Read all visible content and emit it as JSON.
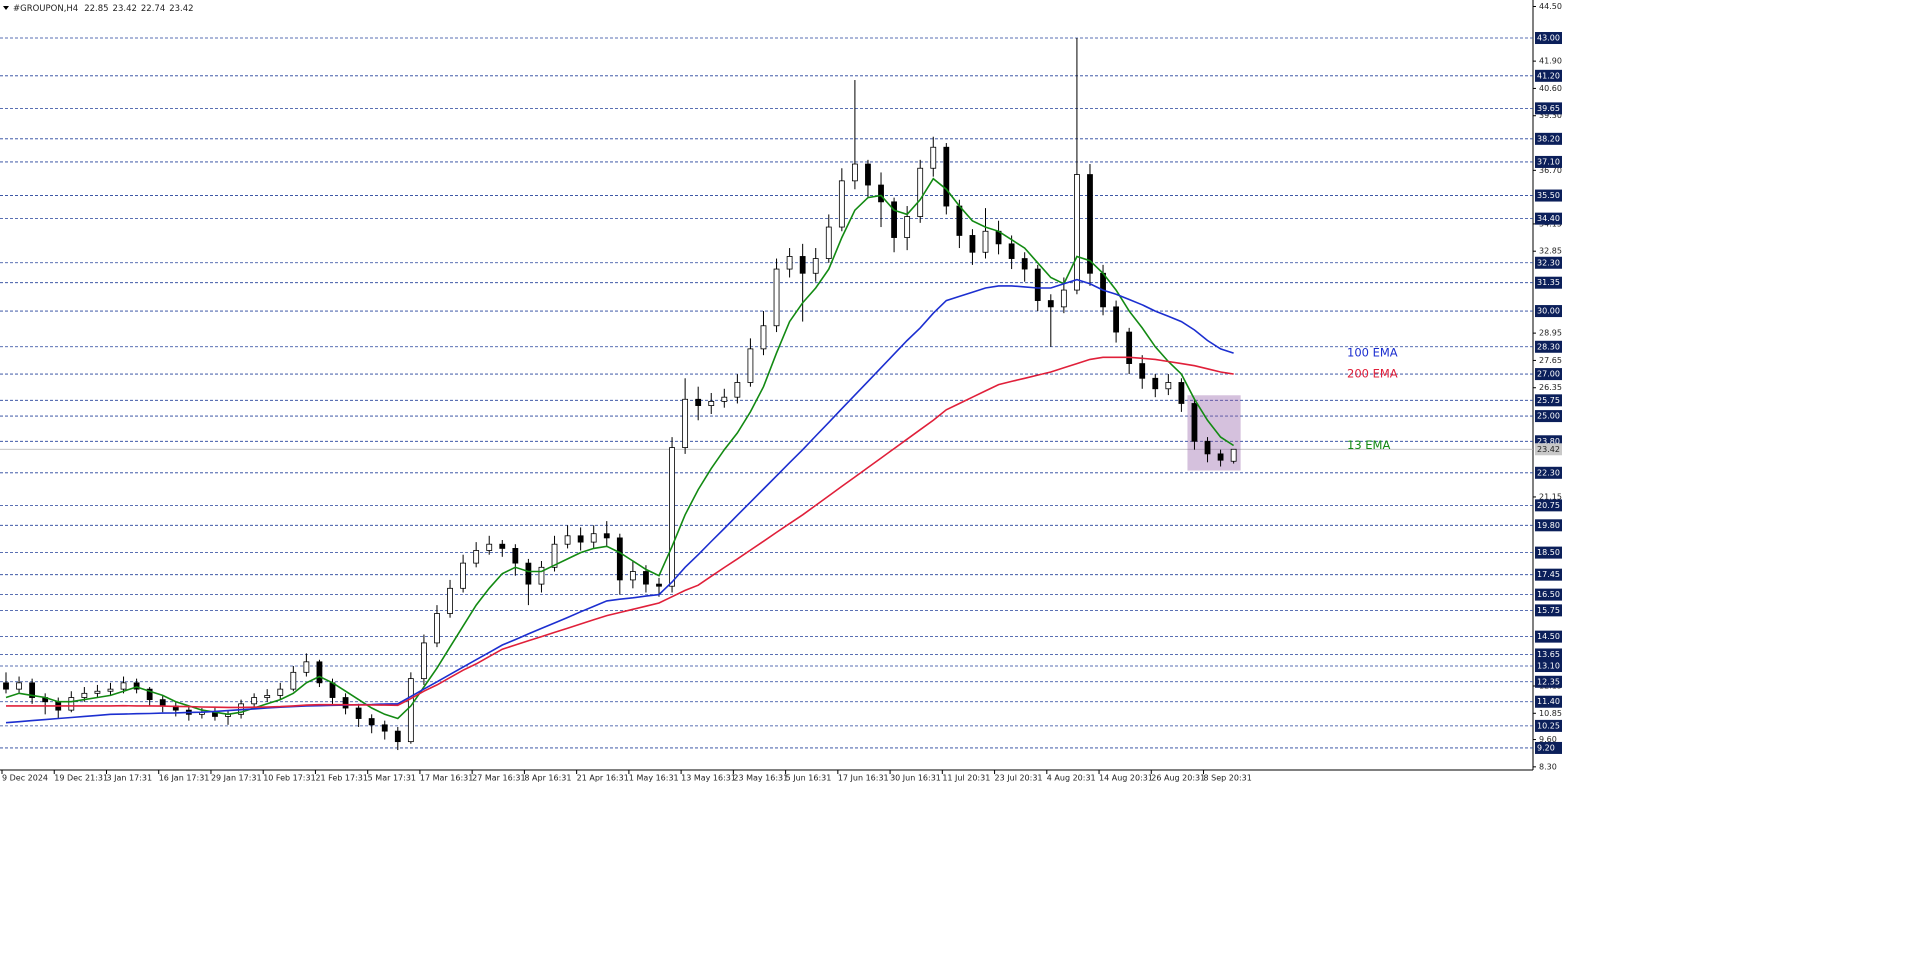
{
  "chart_data": {
    "type": "candlestick",
    "title": "#GROUPON,H4",
    "categories": [
      "9 Dec 2024",
      null,
      null,
      null,
      "19 Dec 21:31",
      null,
      null,
      null,
      "3 Jan 17:31",
      null,
      null,
      null,
      "16 Jan 17:31",
      null,
      null,
      null,
      "29 Jan 17:31",
      null,
      null,
      null,
      "10 Feb 17:31",
      null,
      null,
      null,
      "21 Feb 17:31",
      null,
      null,
      null,
      "5 Mar 17:31",
      null,
      null,
      null,
      "17 Mar 16:31",
      null,
      null,
      null,
      "27 Mar 16:31",
      null,
      null,
      null,
      "8 Apr 16:31",
      null,
      null,
      null,
      "21 Apr 16:31",
      null,
      null,
      null,
      "1 May 16:31",
      null,
      null,
      null,
      "13 May 16:31",
      null,
      null,
      null,
      "23 May 16:31",
      null,
      null,
      null,
      "5 Jun 16:31",
      null,
      null,
      null,
      "17 Jun 16:31",
      null,
      null,
      null,
      "30 Jun 16:31",
      null,
      null,
      null,
      "11 Jul 20:31",
      null,
      null,
      null,
      "23 Jul 20:31",
      null,
      null,
      null,
      "4 Aug 20:31",
      null,
      null,
      null,
      "14 Aug 20:31",
      null,
      null,
      null,
      "26 Aug 20:31",
      null,
      null,
      null,
      "8 Sep 20:31",
      null,
      null
    ],
    "candles": {
      "open": [
        12.3,
        12.0,
        12.3,
        11.6,
        11.4,
        11.0,
        11.6,
        11.8,
        11.9,
        12.0,
        12.3,
        12.0,
        11.5,
        11.2,
        11.0,
        10.8,
        10.9,
        10.7,
        10.8,
        11.3,
        11.6,
        11.7,
        12.0,
        12.8,
        13.3,
        12.3,
        11.6,
        11.1,
        10.6,
        10.3,
        10.0,
        9.5,
        12.5,
        14.2,
        15.6,
        16.8,
        18.0,
        18.6,
        18.9,
        18.7,
        18.0,
        17.0,
        17.8,
        18.9,
        19.3,
        19.0,
        19.4,
        19.2,
        17.2,
        17.6,
        17.0,
        16.9,
        23.5,
        25.8,
        25.5,
        25.7,
        25.9,
        26.6,
        28.2,
        29.3,
        32.0,
        32.6,
        31.8,
        32.5,
        34.0,
        36.2,
        37.0,
        36.0,
        35.2,
        33.5,
        34.5,
        36.8,
        37.8,
        35.0,
        33.6,
        32.8,
        33.8,
        33.2,
        32.5,
        32.0,
        30.5,
        30.2,
        31.0,
        36.5,
        31.8,
        30.2,
        29.0,
        27.5,
        26.8,
        26.3,
        26.6,
        25.6,
        23.8,
        23.2,
        22.85
      ],
      "high": [
        12.8,
        12.6,
        12.5,
        11.8,
        11.6,
        11.9,
        12.1,
        12.2,
        12.3,
        12.6,
        12.5,
        12.1,
        11.7,
        11.4,
        11.2,
        11.1,
        11.1,
        11.0,
        11.5,
        11.8,
        12.0,
        12.3,
        13.1,
        13.7,
        13.4,
        12.5,
        11.8,
        11.3,
        10.8,
        10.5,
        10.2,
        12.8,
        14.6,
        16.0,
        17.2,
        18.4,
        19.0,
        19.3,
        19.1,
        18.9,
        18.2,
        18.1,
        19.3,
        19.8,
        19.7,
        19.8,
        20.0,
        19.4,
        18.1,
        17.9,
        17.3,
        24.0,
        26.8,
        26.4,
        26.1,
        26.3,
        27.0,
        28.7,
        30.0,
        32.5,
        33.0,
        33.2,
        33.0,
        34.6,
        36.8,
        41.0,
        37.2,
        36.6,
        35.4,
        35.0,
        37.2,
        38.3,
        38.0,
        35.3,
        33.9,
        34.9,
        34.3,
        33.6,
        32.8,
        32.2,
        30.8,
        31.6,
        43.0,
        37.0,
        32.2,
        30.5,
        29.2,
        27.9,
        27.0,
        27.0,
        26.8,
        25.8,
        24.0,
        23.4,
        23.42
      ],
      "low": [
        11.8,
        11.8,
        11.3,
        10.8,
        10.6,
        10.9,
        11.4,
        11.6,
        11.7,
        11.8,
        11.8,
        11.2,
        10.9,
        10.7,
        10.5,
        10.6,
        10.5,
        10.3,
        10.6,
        11.1,
        11.4,
        11.5,
        11.9,
        12.6,
        12.1,
        11.3,
        10.8,
        10.2,
        9.9,
        9.6,
        9.1,
        9.4,
        12.2,
        14.0,
        15.4,
        16.6,
        17.8,
        18.4,
        18.3,
        17.4,
        16.0,
        16.6,
        17.6,
        18.7,
        18.6,
        18.7,
        18.8,
        16.5,
        16.8,
        16.6,
        16.4,
        16.6,
        23.2,
        24.8,
        25.1,
        25.4,
        25.6,
        26.4,
        27.9,
        29.0,
        31.6,
        29.5,
        31.4,
        32.3,
        33.8,
        35.8,
        35.4,
        34.0,
        32.8,
        32.9,
        34.2,
        36.4,
        34.6,
        33.0,
        32.2,
        32.5,
        32.7,
        32.0,
        31.4,
        30.0,
        28.3,
        29.9,
        30.8,
        31.2,
        29.8,
        28.5,
        27.0,
        26.3,
        25.9,
        26.0,
        25.2,
        23.4,
        22.8,
        22.6,
        22.74
      ],
      "close": [
        12.0,
        12.3,
        11.6,
        11.4,
        11.0,
        11.6,
        11.8,
        11.9,
        12.0,
        12.3,
        12.0,
        11.5,
        11.2,
        11.0,
        10.8,
        10.9,
        10.7,
        10.8,
        11.3,
        11.6,
        11.7,
        12.0,
        12.8,
        13.3,
        12.3,
        11.6,
        11.1,
        10.6,
        10.3,
        10.0,
        9.5,
        12.5,
        14.2,
        15.6,
        16.8,
        18.0,
        18.6,
        18.9,
        18.7,
        18.0,
        17.0,
        17.8,
        18.9,
        19.3,
        19.0,
        19.4,
        19.2,
        17.2,
        17.6,
        17.0,
        16.9,
        23.5,
        25.8,
        25.5,
        25.7,
        25.9,
        26.6,
        28.2,
        29.3,
        32.0,
        32.6,
        31.8,
        32.5,
        34.0,
        36.2,
        37.0,
        36.0,
        35.2,
        33.5,
        34.5,
        36.8,
        37.8,
        35.0,
        33.6,
        32.8,
        33.8,
        33.2,
        32.5,
        32.0,
        30.5,
        30.2,
        31.0,
        36.5,
        31.8,
        30.2,
        29.0,
        27.5,
        26.8,
        26.3,
        26.6,
        25.6,
        23.8,
        23.2,
        22.9,
        23.42
      ]
    },
    "lines": [
      {
        "name": "13 EMA",
        "color": "#138a13",
        "values": [
          11.6,
          11.8,
          11.7,
          11.6,
          11.4,
          11.4,
          11.5,
          11.6,
          11.7,
          11.9,
          12.1,
          11.9,
          11.7,
          11.4,
          11.2,
          11.0,
          10.9,
          10.8,
          10.9,
          11.1,
          11.3,
          11.5,
          11.8,
          12.3,
          12.6,
          12.3,
          11.9,
          11.5,
          11.1,
          10.8,
          10.6,
          11.2,
          12.1,
          13.0,
          14.0,
          15.0,
          16.0,
          16.8,
          17.5,
          17.8,
          17.6,
          17.6,
          17.9,
          18.2,
          18.5,
          18.7,
          18.8,
          18.5,
          18.1,
          17.7,
          17.4,
          18.8,
          20.3,
          21.5,
          22.5,
          23.4,
          24.2,
          25.2,
          26.4,
          28.0,
          29.5,
          30.4,
          31.1,
          32.0,
          33.5,
          34.8,
          35.4,
          35.5,
          34.8,
          34.6,
          35.3,
          36.3,
          35.8,
          35.0,
          34.3,
          34.0,
          33.8,
          33.4,
          33.0,
          32.3,
          31.6,
          31.3,
          32.6,
          32.4,
          31.8,
          31.0,
          30.0,
          29.2,
          28.3,
          27.6,
          27.0,
          25.8,
          24.8,
          24.0,
          23.6
        ]
      },
      {
        "name": "100 EMA",
        "color": "#1c2fd0",
        "values": [
          10.4,
          10.45,
          10.5,
          10.55,
          10.6,
          10.65,
          10.7,
          10.75,
          10.8,
          10.81,
          10.83,
          10.84,
          10.86,
          10.87,
          10.89,
          10.9,
          10.94,
          10.98,
          11.02,
          11.06,
          11.1,
          11.14,
          11.17,
          11.2,
          11.21,
          11.23,
          11.24,
          11.26,
          11.27,
          11.29,
          11.3,
          11.65,
          12.0,
          12.35,
          12.7,
          13.05,
          13.4,
          13.75,
          14.1,
          14.36,
          14.63,
          14.89,
          15.15,
          15.41,
          15.68,
          15.94,
          16.2,
          16.28,
          16.35,
          16.43,
          16.5,
          17.1,
          17.8,
          18.4,
          19.03,
          19.65,
          20.28,
          20.9,
          21.53,
          22.15,
          22.78,
          23.4,
          24.05,
          24.7,
          25.35,
          26.0,
          26.65,
          27.3,
          27.95,
          28.6,
          29.2,
          29.9,
          30.5,
          30.7,
          30.9,
          31.1,
          31.2,
          31.2,
          31.15,
          31.1,
          31.1,
          31.3,
          31.5,
          31.3,
          31.0,
          30.8,
          30.55,
          30.3,
          30.0,
          29.75,
          29.5,
          29.1,
          28.6,
          28.2,
          28.0
        ]
      },
      {
        "name": "200 EMA",
        "color": "#e0203a",
        "values": [
          11.2,
          11.2,
          11.2,
          11.2,
          11.2,
          11.2,
          11.2,
          11.2,
          11.2,
          11.21,
          11.2,
          11.2,
          11.19,
          11.18,
          11.17,
          11.15,
          11.14,
          11.13,
          11.13,
          11.14,
          11.15,
          11.17,
          11.2,
          11.24,
          11.26,
          11.26,
          11.26,
          11.25,
          11.25,
          11.24,
          11.23,
          11.55,
          11.9,
          12.2,
          12.55,
          12.9,
          13.2,
          13.55,
          13.9,
          14.1,
          14.3,
          14.5,
          14.7,
          14.9,
          15.1,
          15.3,
          15.5,
          15.65,
          15.8,
          15.95,
          16.1,
          16.4,
          16.7,
          16.95,
          17.37,
          17.79,
          18.2,
          18.62,
          19.04,
          19.46,
          19.88,
          20.3,
          20.75,
          21.2,
          21.65,
          22.1,
          22.55,
          23.0,
          23.45,
          23.9,
          24.35,
          24.8,
          25.3,
          25.6,
          25.9,
          26.2,
          26.5,
          26.65,
          26.8,
          26.95,
          27.1,
          27.3,
          27.5,
          27.7,
          27.8,
          27.8,
          27.8,
          27.75,
          27.7,
          27.6,
          27.5,
          27.4,
          27.25,
          27.1,
          27.0
        ]
      }
    ],
    "levels": [
      {
        "value": 43,
        "label": "43.00"
      },
      {
        "value": 41.2,
        "label": "41.20"
      },
      39.65,
      {
        "value": 38.2,
        "label": "38.20"
      },
      {
        "value": 37.1,
        "label": "37.10"
      },
      {
        "value": 35.5,
        "label": "35.50"
      },
      {
        "value": 34.4,
        "label": "34.40"
      },
      {
        "value": 32.3,
        "label": "32.30"
      },
      31.35,
      {
        "value": 30,
        "label": "30.00"
      },
      {
        "value": 28.3,
        "label": "28.30"
      },
      {
        "value": 27,
        "label": "27.00"
      },
      25.75,
      {
        "value": 25,
        "label": "25.00"
      },
      {
        "value": 23.8,
        "label": "23.80"
      },
      {
        "value": 22.3,
        "label": "22.30"
      },
      20.75,
      {
        "value": 19.8,
        "label": "19.80"
      },
      {
        "value": 18.5,
        "label": "18.50"
      },
      17.45,
      {
        "value": 16.5,
        "label": "16.50"
      },
      15.75,
      {
        "value": 14.5,
        "label": "14.50"
      },
      13.65,
      {
        "value": 13.1,
        "label": "13.10"
      },
      12.35,
      {
        "value": 11.4,
        "label": "11.40"
      },
      10.25,
      {
        "value": 9.2,
        "label": "9.20"
      }
    ],
    "ylim": [
      8.15,
      44.81
    ],
    "yticks": [
      {
        "value": 44.5,
        "label": "44.50"
      },
      {
        "value": 41.9,
        "label": "41.90"
      },
      {
        "value": 40.6,
        "label": "40.60"
      },
      {
        "value": 39.3,
        "label": "39.30"
      },
      {
        "value": 36.7,
        "label": "36.70"
      },
      34.15,
      32.85,
      28.95,
      27.65,
      26.35,
      21.15,
      12.15,
      10.85,
      {
        "value": 9.6,
        "label": "9.60"
      },
      {
        "value": 8.3,
        "label": "8.30"
      }
    ],
    "grid": false
  }
}
